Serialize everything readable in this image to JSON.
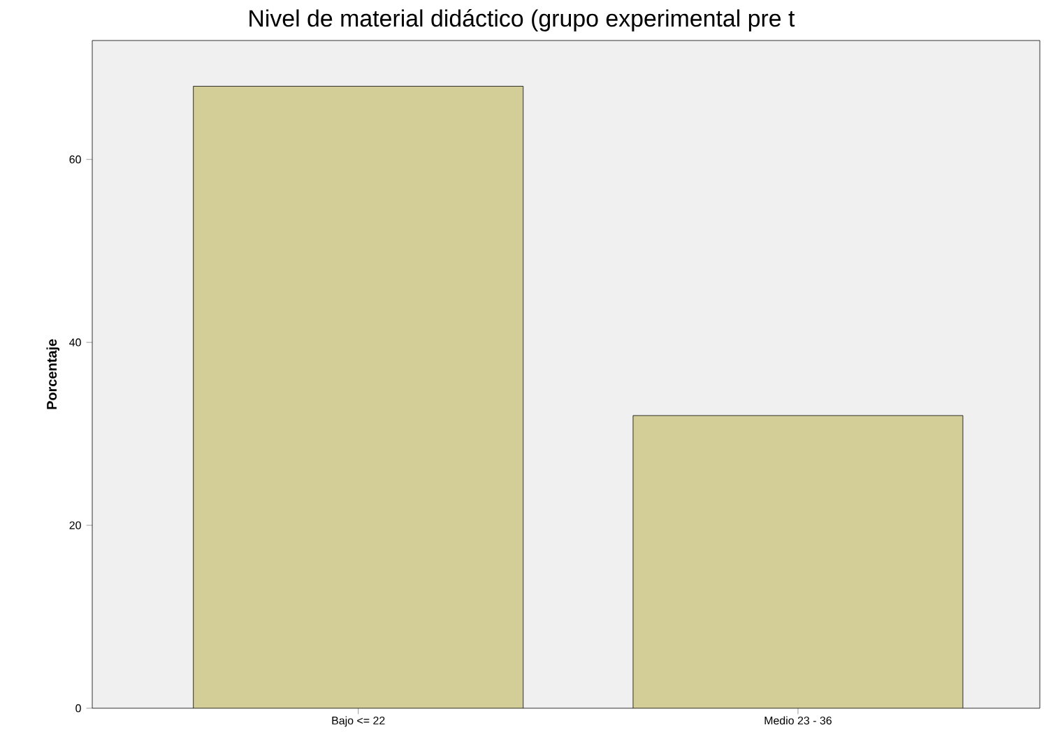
{
  "chart_data": {
    "type": "bar",
    "title": "Nivel de material didáctico (grupo experimental pre t",
    "ylabel": "Porcentaje",
    "categories": [
      "Bajo <= 22",
      "Medio 23 - 36"
    ],
    "values": [
      68,
      32
    ],
    "color": "#d3ce97",
    "ylim": [
      0,
      73
    ],
    "yticks": [
      0,
      20,
      40,
      60
    ],
    "grid": false
  }
}
